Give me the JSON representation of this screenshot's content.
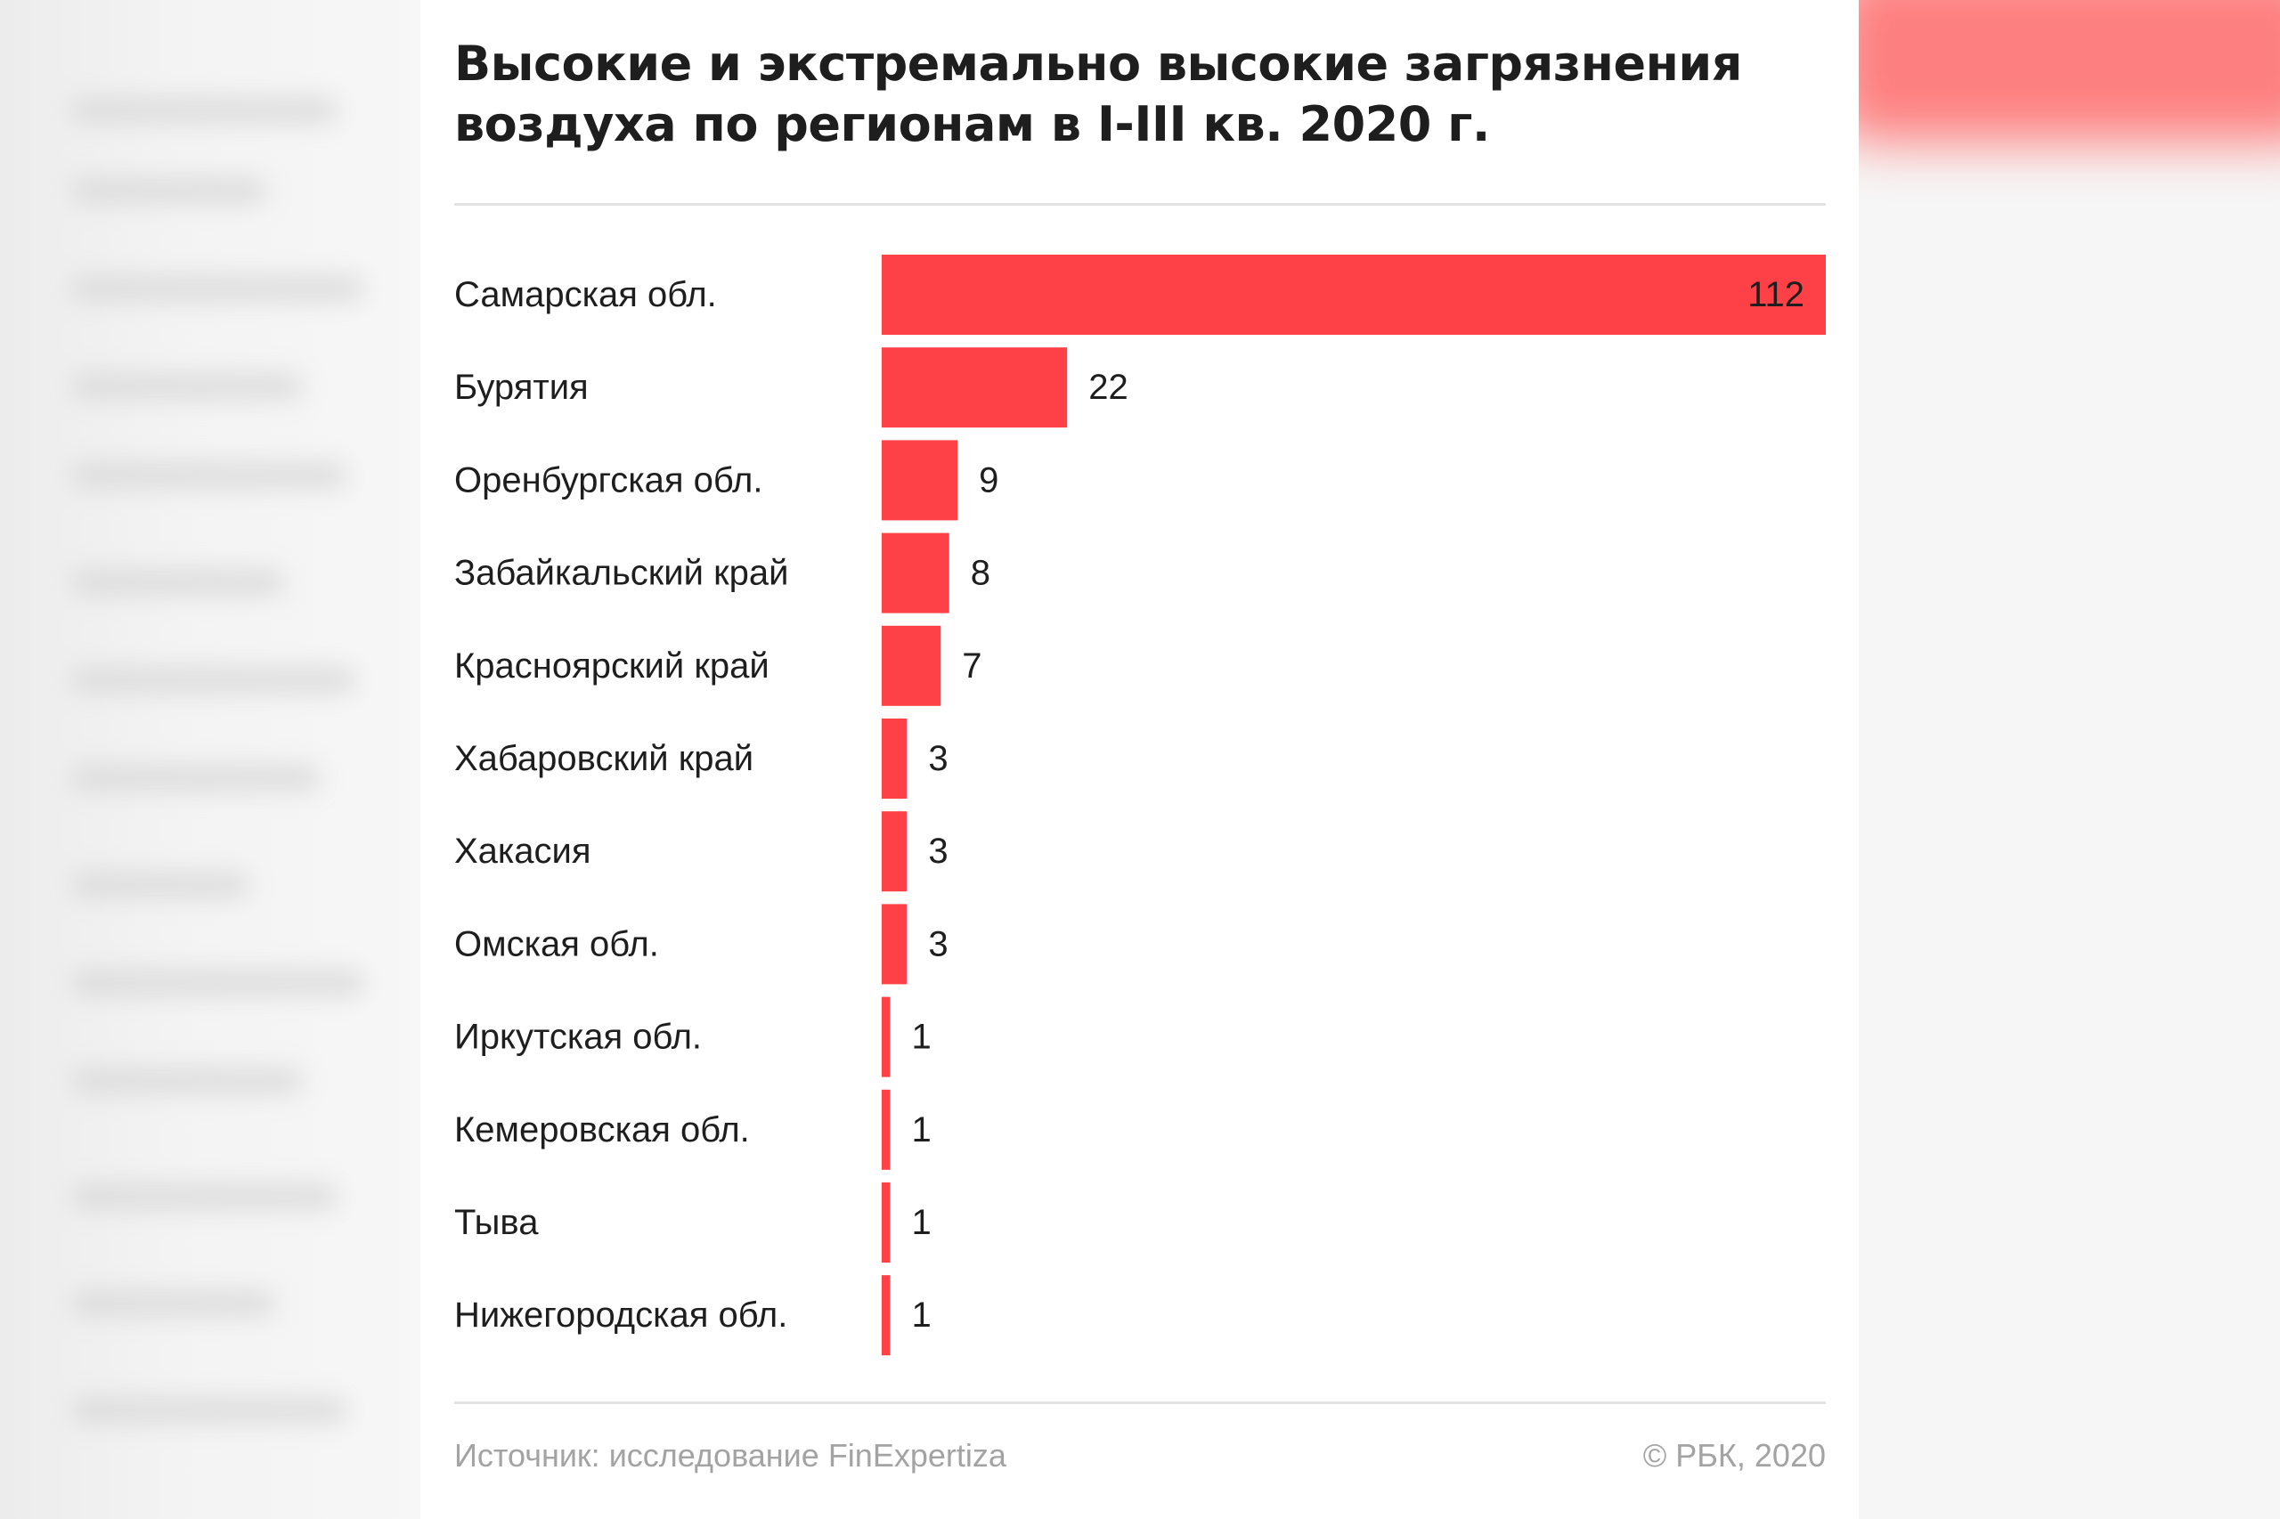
{
  "chart_data": {
    "type": "bar",
    "orientation": "horizontal",
    "title": "Высокие и экстремально высокие загрязнения воздуха по регионам в I-III кв. 2020 г.",
    "categories": [
      "Самарская обл.",
      "Бурятия",
      "Оренбургская обл.",
      "Забайкальский край",
      "Красноярский край",
      "Хабаровский край",
      "Хакасия",
      "Омская обл.",
      "Иркутская обл.",
      "Кемеровская обл.",
      "Тыва",
      "Нижегородская обл."
    ],
    "values": [
      112,
      22,
      9,
      8,
      7,
      3,
      3,
      3,
      1,
      1,
      1,
      1
    ],
    "xlim": [
      0,
      112
    ],
    "bar_color": "#fe4146",
    "xlabel": "",
    "ylabel": "",
    "grid": false,
    "legend": "none"
  },
  "footer": {
    "source": "Источник: исследование FinExpertiza",
    "copyright": "© РБК, 2020"
  },
  "colors": {
    "accent": "#fe4146",
    "text": "#1e1e1e",
    "muted": "#a3a3a3"
  }
}
